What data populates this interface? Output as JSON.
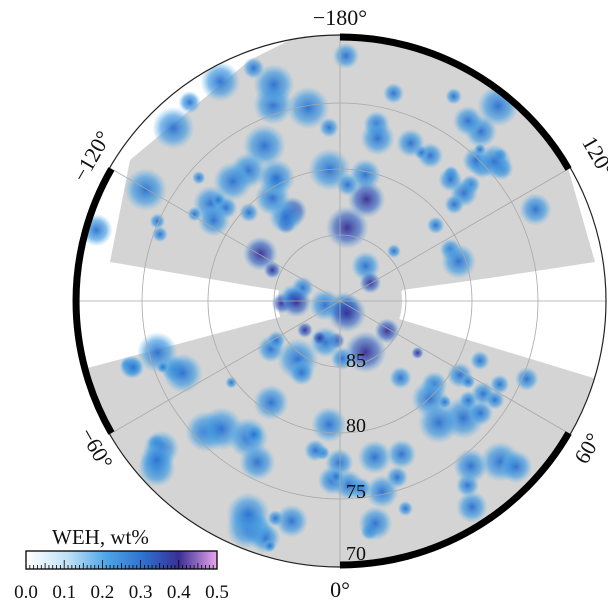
{
  "map": {
    "longitude_labels": {
      "top": "−180°",
      "upper_left": "−120°",
      "upper_right": "120°",
      "lower_left": "−60°",
      "lower_right": "60°",
      "bottom": "0°"
    },
    "latitude_labels": [
      "85",
      "80",
      "75",
      "70"
    ]
  },
  "colorbar": {
    "title": "WEH, wt%",
    "ticks": [
      "0.0",
      "0.1",
      "0.2",
      "0.3",
      "0.4",
      "0.5"
    ]
  },
  "colors": {
    "low": "#ffffff",
    "mid": "#3a8ed8",
    "high": "#3b2a8c",
    "max": "#e3a3e8",
    "terrain": "#cfcfcf"
  }
}
